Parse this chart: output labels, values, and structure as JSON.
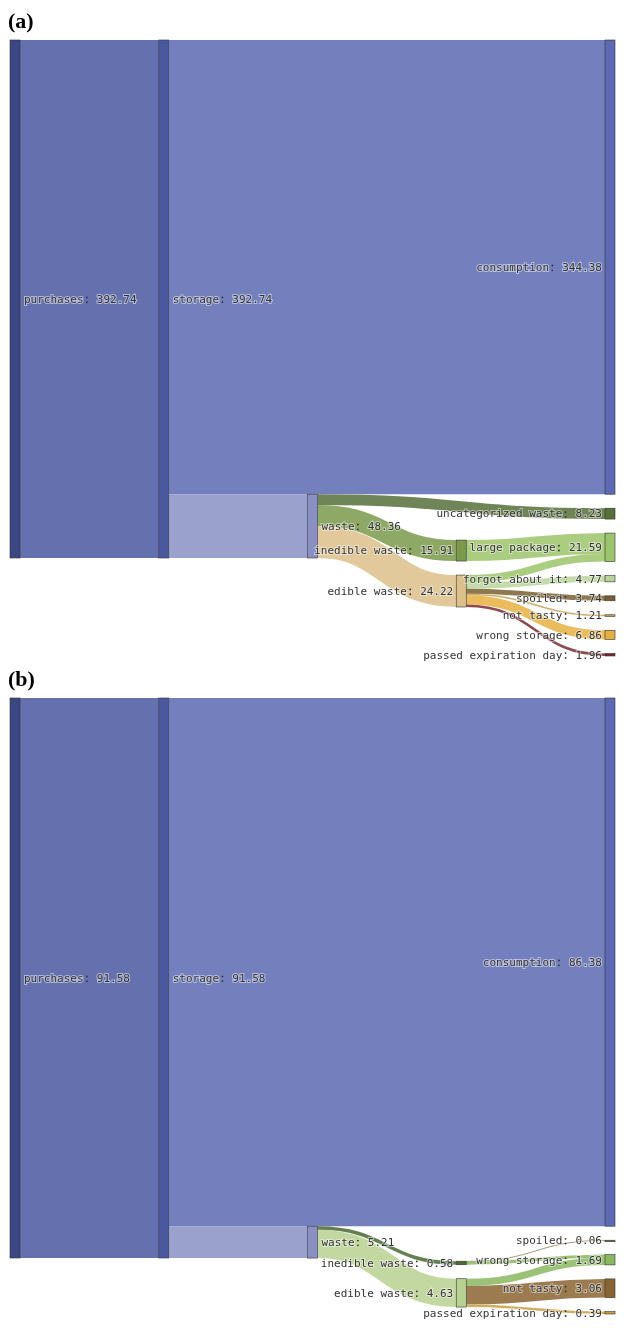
{
  "chart_data": [
    {
      "type": "other",
      "title": "(a)",
      "data_labels": true,
      "categories": [
        "purchases",
        "storage",
        "consumption",
        "waste",
        "uncategorized waste",
        "inedible waste",
        "edible waste",
        "large package",
        "forgot about it",
        "spoiled",
        "not tasty",
        "wrong storage",
        "passed expiration day"
      ],
      "colors": [
        "#3b4684",
        "#4a58a0",
        "#5b6ab2",
        "#8a90c4",
        "#56703a",
        "#7a9a4a",
        "#dcc08a",
        "#9cc46a",
        "#b8d49a",
        "#7a6030",
        "#c8a050",
        "#e6b040",
        "#7a2830"
      ],
      "series": [
        {
          "values": [
            392.74,
            null,
            null,
            null,
            null,
            null,
            null,
            null,
            null,
            null,
            null,
            null,
            null
          ]
        },
        {
          "values": [
            null,
            392.74,
            null,
            null,
            null,
            null,
            null,
            null,
            null,
            null,
            null,
            null,
            null
          ]
        },
        {
          "values": [
            null,
            null,
            null,
            48.36,
            null,
            null,
            null,
            null,
            null,
            null,
            null,
            null,
            null
          ]
        },
        {
          "values": [
            null,
            null,
            null,
            null,
            null,
            15.91,
            24.22,
            null,
            null,
            null,
            null,
            null,
            null
          ]
        },
        {
          "values": [
            null,
            null,
            344.38,
            null,
            8.23,
            null,
            null,
            21.59,
            4.77,
            3.74,
            1.21,
            6.86,
            1.96
          ]
        }
      ]
    },
    {
      "type": "other",
      "title": "(b)",
      "data_labels": true,
      "categories": [
        "purchases",
        "storage",
        "consumption",
        "waste",
        "inedible waste",
        "edible waste",
        "spoiled",
        "wrong storage",
        "not tasty",
        "passed expiration day"
      ],
      "colors": [
        "#3b4684",
        "#4a58a0",
        "#5b6ab2",
        "#8a90c4",
        "#4a6a30",
        "#b8d090",
        "#7a6a40",
        "#8ab860",
        "#8a6430",
        "#c8a040"
      ],
      "series": [
        {
          "values": [
            91.58,
            null,
            null,
            null,
            null,
            null,
            null,
            null,
            null,
            null
          ]
        },
        {
          "values": [
            null,
            91.58,
            null,
            null,
            null,
            null,
            null,
            null,
            null,
            null
          ]
        },
        {
          "values": [
            null,
            null,
            null,
            5.21,
            null,
            null,
            null,
            null,
            null,
            null
          ]
        },
        {
          "values": [
            null,
            null,
            null,
            null,
            0.58,
            4.63,
            null,
            null,
            null,
            null
          ]
        },
        {
          "values": [
            null,
            null,
            86.38,
            null,
            null,
            null,
            0.06,
            1.69,
            3.06,
            0.39
          ]
        }
      ]
    }
  ]
}
